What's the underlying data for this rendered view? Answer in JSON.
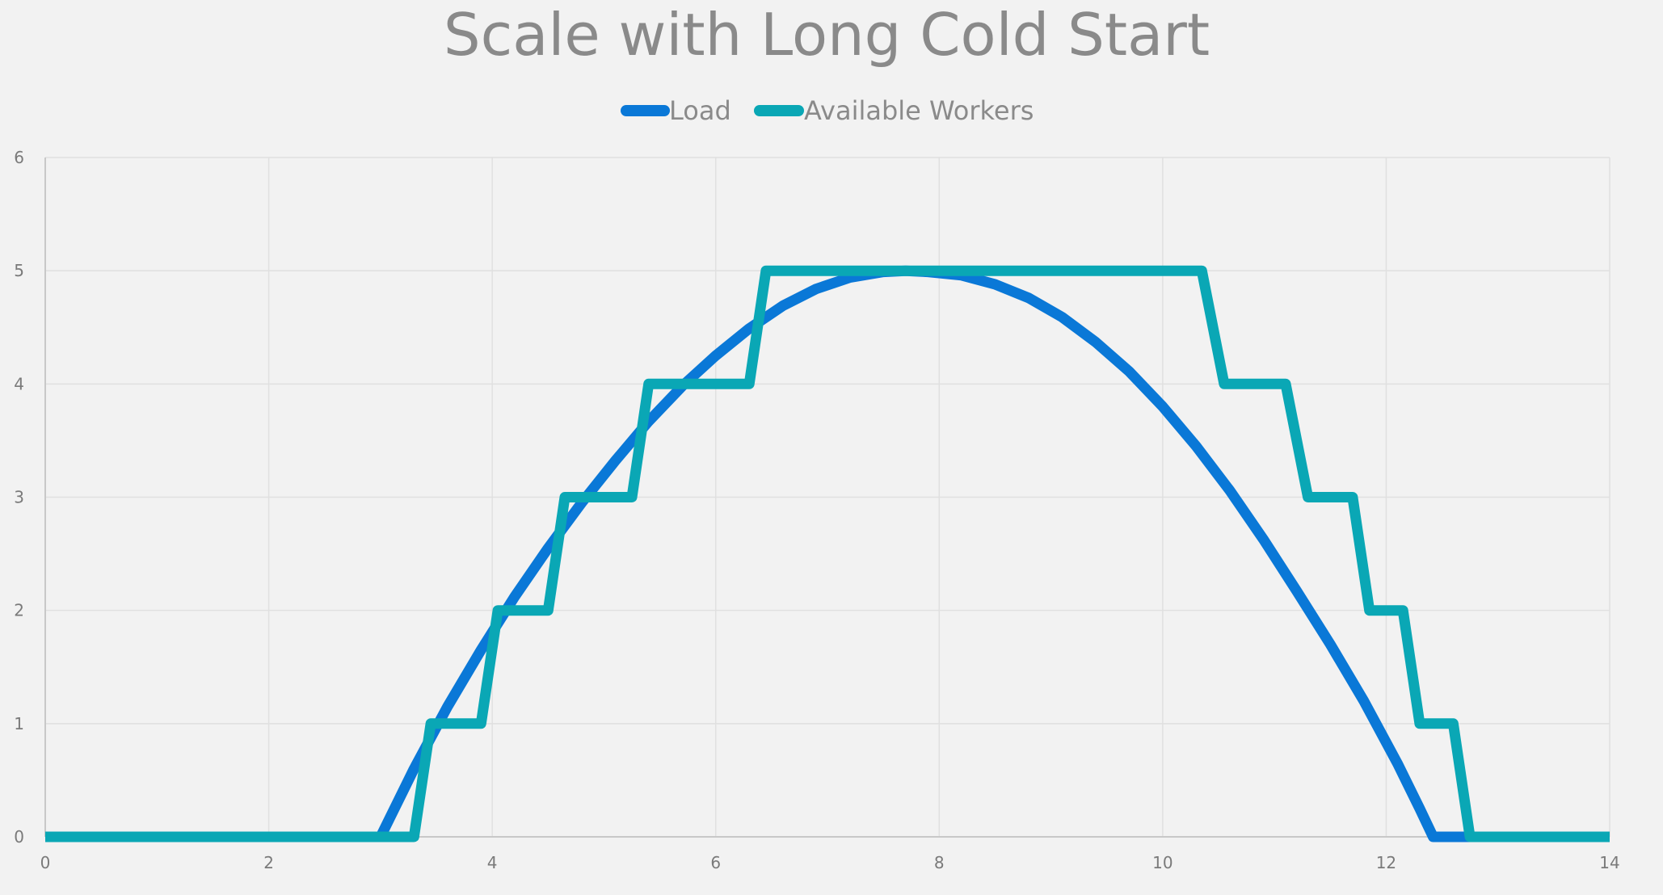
{
  "chart_data": {
    "type": "line",
    "title": "Scale with Long Cold Start",
    "xlabel": "",
    "ylabel": "",
    "xlim": [
      0,
      14
    ],
    "ylim": [
      0,
      6
    ],
    "x_ticks": [
      "0",
      "2",
      "4",
      "6",
      "8",
      "10",
      "12",
      "14"
    ],
    "y_ticks": [
      "0",
      "1",
      "2",
      "3",
      "4",
      "5",
      "6"
    ],
    "grid": true,
    "legend": "top-center",
    "series": [
      {
        "name": "Load",
        "color": "#0a78d7",
        "points": [
          [
            0,
            0
          ],
          [
            3.0,
            0
          ],
          [
            3.3,
            0.6
          ],
          [
            3.6,
            1.15
          ],
          [
            3.9,
            1.65
          ],
          [
            4.2,
            2.12
          ],
          [
            4.5,
            2.55
          ],
          [
            4.8,
            2.95
          ],
          [
            5.1,
            3.32
          ],
          [
            5.4,
            3.67
          ],
          [
            5.7,
            3.98
          ],
          [
            6.0,
            4.25
          ],
          [
            6.3,
            4.49
          ],
          [
            6.6,
            4.69
          ],
          [
            6.9,
            4.84
          ],
          [
            7.2,
            4.94
          ],
          [
            7.5,
            4.99
          ],
          [
            7.7,
            5.0
          ],
          [
            7.9,
            4.99
          ],
          [
            8.2,
            4.96
          ],
          [
            8.5,
            4.88
          ],
          [
            8.8,
            4.76
          ],
          [
            9.1,
            4.59
          ],
          [
            9.4,
            4.37
          ],
          [
            9.7,
            4.11
          ],
          [
            10.0,
            3.8
          ],
          [
            10.3,
            3.45
          ],
          [
            10.6,
            3.06
          ],
          [
            10.9,
            2.63
          ],
          [
            11.2,
            2.17
          ],
          [
            11.5,
            1.7
          ],
          [
            11.8,
            1.2
          ],
          [
            12.1,
            0.65
          ],
          [
            12.3,
            0.25
          ],
          [
            12.42,
            0
          ],
          [
            12.75,
            0
          ]
        ]
      },
      {
        "name": "Available Workers",
        "color": "#0aa7b5",
        "points": [
          [
            0,
            0
          ],
          [
            3.3,
            0
          ],
          [
            3.45,
            1
          ],
          [
            3.9,
            1
          ],
          [
            4.05,
            2
          ],
          [
            4.5,
            2
          ],
          [
            4.65,
            3
          ],
          [
            5.25,
            3
          ],
          [
            5.4,
            4
          ],
          [
            6.3,
            4
          ],
          [
            6.45,
            5
          ],
          [
            10.35,
            5
          ],
          [
            10.55,
            4
          ],
          [
            11.1,
            4
          ],
          [
            11.3,
            3
          ],
          [
            11.7,
            3
          ],
          [
            11.85,
            2
          ],
          [
            12.15,
            2
          ],
          [
            12.3,
            1
          ],
          [
            12.6,
            1
          ],
          [
            12.75,
            0
          ],
          [
            14,
            0
          ]
        ]
      }
    ]
  }
}
